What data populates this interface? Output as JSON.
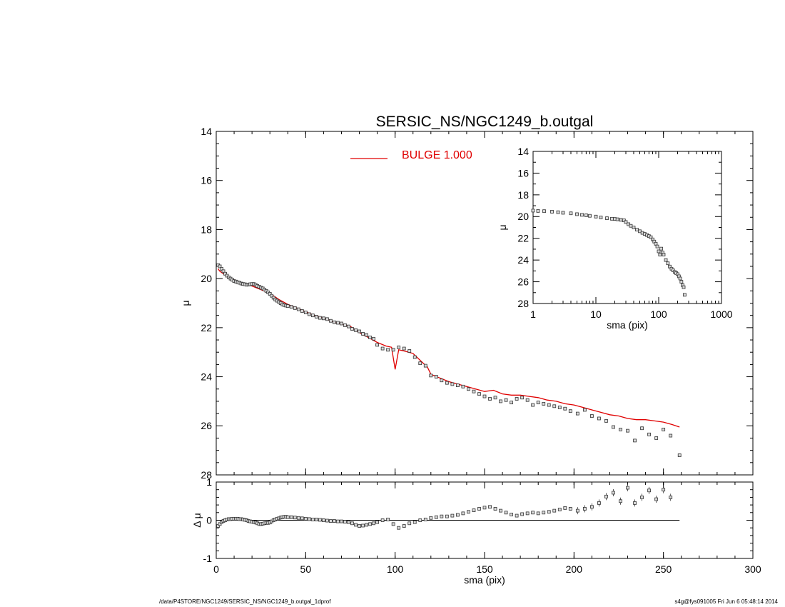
{
  "title": "SERSIC_NS/NGC1249_b.outgal",
  "legend": {
    "label": "BULGE  1.000",
    "color": "#e00000"
  },
  "footer": {
    "left": "/data/P4STORE/NGC1249/SERSIC_NS/NGC1249_b.outgal_1dprof",
    "right": "s4g@fys091005  Fri Jun  6 05:48:14 2014"
  },
  "colors": {
    "model": "#e00000",
    "data": "#000000"
  },
  "chart_data": [
    {
      "id": "main",
      "type": "scatter",
      "ylabel": "μ",
      "xlim": [
        0,
        300
      ],
      "ylim": [
        28,
        14
      ],
      "y_ticks": [
        14,
        16,
        18,
        20,
        22,
        24,
        26,
        28
      ],
      "series": [
        {
          "name": "BULGE  1.000",
          "type": "line",
          "x": [
            1,
            2,
            3,
            5,
            7,
            10,
            15,
            20,
            25,
            30,
            35,
            40,
            45,
            50,
            55,
            60,
            65,
            70,
            75,
            80,
            85,
            90,
            95,
            98,
            100,
            102,
            105,
            110,
            115,
            118,
            120,
            125,
            130,
            135,
            140,
            145,
            150,
            155,
            160,
            165,
            170,
            175,
            180,
            185,
            190,
            195,
            200,
            205,
            210,
            215,
            220,
            225,
            230,
            235,
            240,
            245,
            250,
            255,
            259
          ],
          "y": [
            19.6,
            19.7,
            19.75,
            19.85,
            19.95,
            20.05,
            20.2,
            20.3,
            20.45,
            20.6,
            20.85,
            21.05,
            21.2,
            21.35,
            21.5,
            21.6,
            21.75,
            21.85,
            21.95,
            22.2,
            22.4,
            22.6,
            22.75,
            22.8,
            23.7,
            22.9,
            22.95,
            23.05,
            23.4,
            23.6,
            23.9,
            24.05,
            24.2,
            24.3,
            24.4,
            24.5,
            24.6,
            24.55,
            24.7,
            24.75,
            24.75,
            24.8,
            24.85,
            24.95,
            25.0,
            25.1,
            25.15,
            25.25,
            25.35,
            25.45,
            25.55,
            25.6,
            25.7,
            25.75,
            25.75,
            25.8,
            25.85,
            25.95,
            26.05
          ]
        },
        {
          "name": "",
          "type": "scatter",
          "x": [
            1,
            2,
            3,
            4,
            5,
            6,
            7,
            8,
            9,
            10,
            11,
            12,
            13,
            14,
            15,
            16,
            17,
            18,
            19,
            20,
            21,
            22,
            23,
            24,
            25,
            26,
            27,
            28,
            29,
            30,
            31,
            32,
            33,
            34,
            35,
            36,
            37,
            38,
            39,
            40,
            42,
            44,
            46,
            48,
            50,
            52,
            54,
            56,
            58,
            60,
            62,
            64,
            66,
            68,
            70,
            72,
            74,
            76,
            78,
            80,
            82,
            84,
            86,
            88,
            90,
            93,
            96,
            99,
            102,
            105,
            108,
            111,
            114,
            117,
            120,
            123,
            126,
            129,
            132,
            135,
            138,
            141,
            144,
            147,
            150,
            153,
            156,
            159,
            162,
            165,
            168,
            171,
            174,
            177,
            180,
            183,
            186,
            189,
            192,
            195,
            198,
            202,
            206,
            210,
            214,
            218,
            222,
            226,
            230,
            234,
            238,
            242,
            246,
            250,
            254,
            259
          ],
          "y": [
            19.45,
            19.5,
            19.6,
            19.7,
            19.8,
            19.88,
            19.95,
            20.0,
            20.05,
            20.1,
            20.12,
            20.15,
            20.17,
            20.2,
            20.22,
            20.23,
            20.25,
            20.24,
            20.23,
            20.22,
            20.22,
            20.25,
            20.3,
            20.33,
            20.37,
            20.4,
            20.45,
            20.5,
            20.56,
            20.62,
            20.7,
            20.78,
            20.85,
            20.9,
            20.95,
            21.0,
            21.05,
            21.08,
            21.1,
            21.12,
            21.15,
            21.2,
            21.25,
            21.32,
            21.38,
            21.45,
            21.5,
            21.55,
            21.6,
            21.62,
            21.65,
            21.72,
            21.78,
            21.8,
            21.83,
            21.9,
            21.95,
            22.05,
            22.1,
            22.15,
            22.25,
            22.3,
            22.4,
            22.45,
            22.7,
            22.85,
            22.9,
            22.9,
            22.8,
            22.85,
            22.95,
            23.2,
            23.45,
            23.55,
            23.95,
            24.0,
            24.15,
            24.25,
            24.3,
            24.35,
            24.4,
            24.5,
            24.6,
            24.7,
            24.8,
            24.9,
            24.85,
            25.0,
            24.95,
            25.05,
            24.9,
            24.85,
            24.95,
            25.15,
            25.05,
            25.1,
            25.15,
            25.2,
            25.25,
            25.3,
            25.4,
            25.5,
            25.35,
            25.6,
            25.7,
            25.8,
            26.05,
            26.15,
            26.2,
            26.6,
            26.1,
            26.35,
            26.5,
            26.15,
            26.4,
            27.2
          ]
        }
      ]
    },
    {
      "id": "residual",
      "type": "scatter",
      "xlabel": "sma (pix)",
      "ylabel": "Δ μ",
      "xlim": [
        0,
        300
      ],
      "ylim": [
        -1,
        1
      ],
      "x_ticks": [
        0,
        50,
        100,
        150,
        200,
        250,
        300
      ],
      "y_ticks": [
        -1,
        0,
        1
      ],
      "zero_line": {
        "x": [
          0,
          259
        ],
        "y": 0
      },
      "series": [
        {
          "name": "",
          "type": "scatter",
          "x": [
            1,
            2,
            3,
            4,
            5,
            6,
            7,
            8,
            9,
            10,
            11,
            12,
            13,
            14,
            15,
            16,
            17,
            18,
            19,
            20,
            21,
            22,
            23,
            24,
            25,
            26,
            27,
            28,
            29,
            30,
            31,
            32,
            33,
            34,
            35,
            36,
            37,
            38,
            39,
            40,
            42,
            44,
            46,
            48,
            50,
            52,
            54,
            56,
            58,
            60,
            62,
            64,
            66,
            68,
            70,
            72,
            74,
            76,
            78,
            80,
            82,
            84,
            86,
            88,
            90,
            93,
            96,
            99,
            102,
            105,
            108,
            111,
            114,
            117,
            120,
            123,
            126,
            129,
            132,
            135,
            138,
            141,
            144,
            147,
            150,
            153,
            156,
            159,
            162,
            165,
            168,
            171,
            174,
            177,
            180,
            183,
            186,
            189,
            192,
            195,
            198,
            202,
            206,
            210,
            214,
            218,
            222,
            226,
            230,
            234,
            238,
            242,
            246,
            250,
            254
          ],
          "y": [
            -0.15,
            -0.1,
            -0.05,
            -0.02,
            0.0,
            0.02,
            0.03,
            0.03,
            0.04,
            0.04,
            0.04,
            0.04,
            0.03,
            0.03,
            0.02,
            0.01,
            0.0,
            -0.02,
            -0.03,
            -0.04,
            -0.05,
            -0.06,
            -0.08,
            -0.1,
            -0.1,
            -0.09,
            -0.08,
            -0.07,
            -0.07,
            -0.06,
            -0.03,
            0.0,
            0.02,
            0.04,
            0.05,
            0.07,
            0.08,
            0.09,
            0.09,
            0.08,
            0.08,
            0.07,
            0.06,
            0.05,
            0.04,
            0.03,
            0.02,
            0.02,
            0.01,
            0.0,
            -0.01,
            -0.02,
            -0.02,
            -0.03,
            -0.03,
            -0.04,
            -0.05,
            -0.08,
            -0.12,
            -0.15,
            -0.14,
            -0.12,
            -0.1,
            -0.08,
            -0.05,
            0.0,
            0.02,
            -0.1,
            -0.2,
            -0.15,
            -0.08,
            -0.05,
            0.0,
            0.02,
            0.06,
            0.08,
            0.1,
            0.1,
            0.12,
            0.14,
            0.18,
            0.22,
            0.26,
            0.3,
            0.33,
            0.35,
            0.3,
            0.25,
            0.2,
            0.15,
            0.12,
            0.16,
            0.18,
            0.2,
            0.18,
            0.2,
            0.22,
            0.25,
            0.28,
            0.32,
            0.3,
            0.25,
            0.3,
            0.35,
            0.45,
            0.62,
            0.72,
            0.5,
            0.85,
            0.45,
            0.6,
            0.78,
            0.55,
            0.8,
            0.6
          ]
        }
      ]
    },
    {
      "id": "inset",
      "type": "scatter",
      "xlabel": "sma (pix)",
      "ylabel": "μ",
      "xscale": "log",
      "xlim": [
        1,
        1000
      ],
      "ylim": [
        28,
        14
      ],
      "x_ticks": [
        1,
        10,
        100,
        1000
      ],
      "y_ticks": [
        14,
        16,
        18,
        20,
        22,
        24,
        26,
        28
      ],
      "series": [
        {
          "name": "",
          "type": "scatter",
          "x": [
            1,
            1.2,
            1.5,
            2,
            2.5,
            3,
            4,
            5,
            6,
            7,
            8,
            10,
            12,
            15,
            18,
            20,
            22,
            25,
            28,
            30,
            33,
            36,
            40,
            45,
            50,
            55,
            60,
            65,
            70,
            75,
            80,
            85,
            90,
            95,
            100,
            105,
            110,
            115,
            120,
            130,
            140,
            150,
            160,
            170,
            180,
            190,
            200,
            210,
            220,
            230,
            240,
            250,
            259
          ],
          "y": [
            19.45,
            19.48,
            19.5,
            19.55,
            19.6,
            19.65,
            19.7,
            19.78,
            19.84,
            19.88,
            19.93,
            20.0,
            20.08,
            20.15,
            20.2,
            20.22,
            20.25,
            20.3,
            20.35,
            20.5,
            20.7,
            20.85,
            21.0,
            21.2,
            21.35,
            21.5,
            21.6,
            21.7,
            21.8,
            21.9,
            22.1,
            22.3,
            22.5,
            22.75,
            23.2,
            23.5,
            22.95,
            23.3,
            23.5,
            24.0,
            24.3,
            24.6,
            24.8,
            24.95,
            25.1,
            25.2,
            25.3,
            25.5,
            25.7,
            26.0,
            26.3,
            26.5,
            27.2
          ]
        }
      ]
    }
  ]
}
